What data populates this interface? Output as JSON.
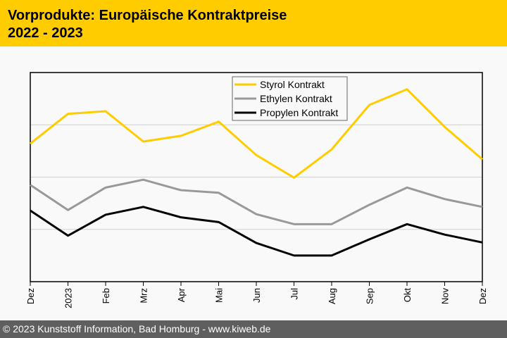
{
  "header": {
    "title_line1": "Vorprodukte: Europäische Kontraktpreise",
    "title_line2": "2022 - 2023"
  },
  "footer": {
    "text": "© 2023 Kunststoff Information, Bad Homburg - www.kiweb.de"
  },
  "colors": {
    "brand": "#ffcc00",
    "footer_bg": "#5f5f5f",
    "styrol": "#ffcc00",
    "ethylen": "#999999",
    "propylen": "#000000",
    "gridline": "#d0d0d0"
  },
  "chart_data": {
    "type": "line",
    "title": "Vorprodukte: Europäische Kontraktpreise 2022 - 2023",
    "xlabel": "",
    "ylabel": "",
    "x": [
      "Dez",
      "2023",
      "Feb",
      "Mrz",
      "Apr",
      "Mai",
      "Jun",
      "Jul",
      "Aug",
      "Sep",
      "Okt",
      "Nov",
      "Dez"
    ],
    "y_units": "relative (no y-axis labels shown; 1 unit = one gridline interval)",
    "ylim": [
      0,
      4
    ],
    "gridlines": [
      1,
      2,
      3
    ],
    "grid": true,
    "legend_position": "top-center",
    "series": [
      {
        "name": "Styrol Kontrakt",
        "color": "#ffcc00",
        "values": [
          2.64,
          3.21,
          3.26,
          2.68,
          2.79,
          3.06,
          2.42,
          1.99,
          2.53,
          3.38,
          3.68,
          2.96,
          2.34
        ]
      },
      {
        "name": "Ethylen Kontrakt",
        "color": "#999999",
        "values": [
          1.85,
          1.37,
          1.8,
          1.95,
          1.75,
          1.7,
          1.29,
          1.1,
          1.1,
          1.47,
          1.8,
          1.58,
          1.43
        ]
      },
      {
        "name": "Propylen Kontrakt",
        "color": "#000000",
        "values": [
          1.36,
          0.88,
          1.28,
          1.43,
          1.23,
          1.14,
          0.74,
          0.5,
          0.5,
          0.81,
          1.1,
          0.9,
          0.75
        ]
      }
    ]
  }
}
